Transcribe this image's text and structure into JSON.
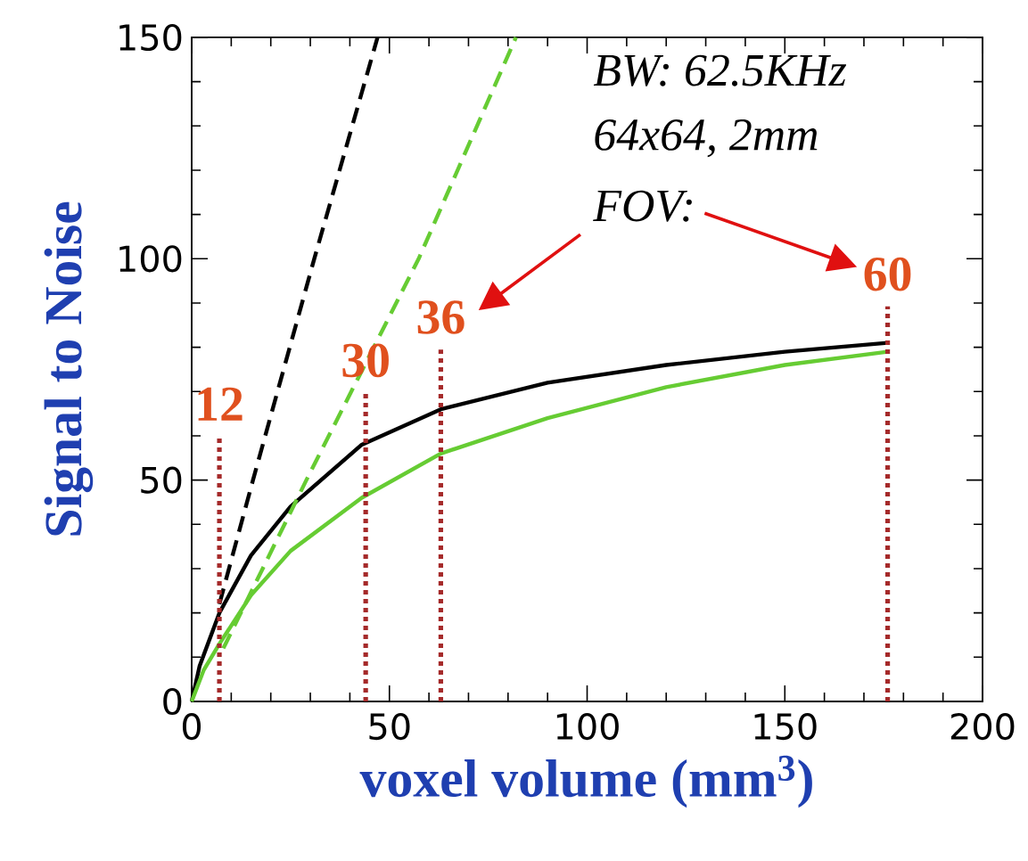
{
  "chart_data": {
    "type": "line",
    "xlabel": "voxel volume (mm$^{3}$)",
    "ylabel": "Signal to Noise",
    "xlim": [
      0,
      200
    ],
    "ylim": [
      0,
      150
    ],
    "xticks": [
      0,
      50,
      100,
      150,
      200
    ],
    "yticks": [
      0,
      50,
      100,
      150
    ],
    "marker": "none",
    "grid": false,
    "series": [
      {
        "color": "#000000",
        "line_style": "solid",
        "x": [
          0,
          2,
          7,
          15,
          25,
          43,
          63,
          90,
          120,
          150,
          176
        ],
        "values": [
          0,
          8,
          20,
          33,
          44,
          58,
          66,
          72,
          76,
          79,
          81
        ]
      },
      {
        "color": "#66cc33",
        "line_style": "solid",
        "x": [
          0,
          3,
          7,
          15,
          25,
          43,
          63,
          90,
          120,
          150,
          176
        ],
        "values": [
          0,
          7,
          13,
          24,
          34,
          46,
          56,
          64,
          71,
          76,
          79
        ]
      },
      {
        "color": "#000000",
        "line_style": "dashed",
        "x": [
          7,
          15.5,
          31,
          47
        ],
        "values": [
          22,
          50,
          100,
          150
        ]
      },
      {
        "color": "#66cc33",
        "line_style": "dashed",
        "x": [
          8,
          29,
          57.4,
          82
        ],
        "values": [
          12,
          50,
          100,
          150
        ]
      }
    ],
    "ref_lines": [
      {
        "axis": "x",
        "value": 7,
        "color": "#a52a2a",
        "line_style": "dotted"
      },
      {
        "axis": "x",
        "value": 44,
        "color": "#a52a2a",
        "line_style": "dotted"
      },
      {
        "axis": "x",
        "value": 63,
        "color": "#a52a2a",
        "line_style": "dotted"
      },
      {
        "axis": "x",
        "value": 176,
        "color": "#a52a2a",
        "line_style": "dotted"
      }
    ],
    "annotations": [
      "BW: 62.5KHz",
      "64x64, 2mm",
      "FOV:",
      "12",
      "30",
      "36",
      "60"
    ]
  }
}
